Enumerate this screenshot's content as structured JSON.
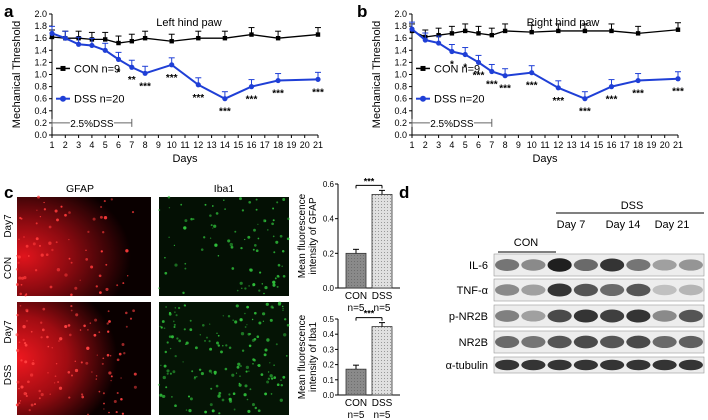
{
  "panel_labels": {
    "a": "a",
    "b": "b",
    "c": "c",
    "d": "d"
  },
  "chart_data": [
    {
      "type": "line",
      "panel": "a",
      "title": "Left hind paw",
      "xlabel": "Days",
      "ylabel": "Mechanical Threshold",
      "xlim": [
        1,
        21
      ],
      "ylim": [
        0.0,
        2.0
      ],
      "y_ticks": [
        "0.0",
        "0.2",
        "0.4",
        "0.6",
        "0.8",
        "1.0",
        "1.2",
        "1.4",
        "1.6",
        "1.8",
        "2.0"
      ],
      "x_ticks": [
        "1",
        "2",
        "3",
        "4",
        "5",
        "6",
        "7",
        "8",
        "9",
        "10",
        "11",
        "12",
        "13",
        "14",
        "15",
        "16",
        "17",
        "18",
        "19",
        "20",
        "21"
      ],
      "series": [
        {
          "name": "CON  n=9",
          "color": "#000000",
          "marker": "square",
          "x": [
            1,
            2,
            3,
            4,
            5,
            6,
            7,
            8,
            10,
            12,
            14,
            16,
            18,
            21
          ],
          "y": [
            1.62,
            1.6,
            1.6,
            1.58,
            1.58,
            1.52,
            1.55,
            1.6,
            1.55,
            1.6,
            1.6,
            1.66,
            1.6,
            1.66
          ]
        },
        {
          "name": "DSS  n=20",
          "color": "#1f3fd6",
          "marker": "circle",
          "x": [
            1,
            2,
            3,
            4,
            5,
            6,
            7,
            8,
            10,
            12,
            14,
            16,
            18,
            21
          ],
          "y": [
            1.68,
            1.6,
            1.5,
            1.48,
            1.4,
            1.25,
            1.12,
            1.02,
            1.16,
            0.83,
            0.6,
            0.8,
            0.9,
            0.92
          ]
        }
      ],
      "annotations": [
        {
          "x": 6,
          "label": "*"
        },
        {
          "x": 7,
          "label": "**"
        },
        {
          "x": 8,
          "label": "***"
        },
        {
          "x": 10,
          "label": "***"
        },
        {
          "x": 12,
          "label": "***"
        },
        {
          "x": 14,
          "label": "***"
        },
        {
          "x": 16,
          "label": "***"
        },
        {
          "x": 18,
          "label": "***"
        },
        {
          "x": 21,
          "label": "***"
        }
      ],
      "treatment_bar": "2.5%DSS"
    },
    {
      "type": "line",
      "panel": "b",
      "title": "Right hind paw",
      "xlabel": "Days",
      "ylabel": "Mechanical Threshold",
      "xlim": [
        1,
        21
      ],
      "ylim": [
        0.0,
        2.0
      ],
      "y_ticks": [
        "0.0",
        "0.2",
        "0.4",
        "0.6",
        "0.8",
        "1.0",
        "1.2",
        "1.4",
        "1.6",
        "1.8",
        "2.0"
      ],
      "x_ticks": [
        "1",
        "2",
        "3",
        "4",
        "5",
        "6",
        "7",
        "8",
        "9",
        "10",
        "11",
        "12",
        "13",
        "14",
        "15",
        "16",
        "17",
        "18",
        "19",
        "20",
        "21"
      ],
      "series": [
        {
          "name": "CON  n=9",
          "color": "#000000",
          "marker": "square",
          "x": [
            1,
            2,
            3,
            4,
            5,
            6,
            7,
            8,
            10,
            12,
            14,
            16,
            18,
            21
          ],
          "y": [
            1.72,
            1.62,
            1.65,
            1.68,
            1.72,
            1.68,
            1.65,
            1.72,
            1.7,
            1.72,
            1.72,
            1.72,
            1.68,
            1.74
          ]
        },
        {
          "name": "DSS  n=20",
          "color": "#1f3fd6",
          "marker": "circle",
          "x": [
            1,
            2,
            3,
            4,
            5,
            6,
            7,
            8,
            10,
            12,
            14,
            16,
            18,
            21
          ],
          "y": [
            1.75,
            1.57,
            1.52,
            1.38,
            1.33,
            1.2,
            1.05,
            0.98,
            1.03,
            0.78,
            0.6,
            0.8,
            0.9,
            0.93
          ]
        }
      ],
      "annotations": [
        {
          "x": 4,
          "label": "*"
        },
        {
          "x": 5,
          "label": "*"
        },
        {
          "x": 6,
          "label": "***"
        },
        {
          "x": 7,
          "label": "***"
        },
        {
          "x": 8,
          "label": "***"
        },
        {
          "x": 10,
          "label": "***"
        },
        {
          "x": 12,
          "label": "***"
        },
        {
          "x": 14,
          "label": "***"
        },
        {
          "x": 16,
          "label": "***"
        },
        {
          "x": 18,
          "label": "***"
        },
        {
          "x": 21,
          "label": "***"
        }
      ],
      "treatment_bar": "2.5%DSS"
    },
    {
      "type": "bar",
      "panel": "c-top",
      "categories": [
        "CON",
        "DSS"
      ],
      "values": [
        0.2,
        0.54
      ],
      "ylim": [
        0.0,
        0.6
      ],
      "y_ticks": [
        "0.0",
        "0.2",
        "0.4",
        "0.6"
      ],
      "ylabel_lines": [
        "Mean fluorescence",
        "intensity of GFAP"
      ],
      "n_labels": [
        "n=5",
        "n=5"
      ],
      "significance": "***"
    },
    {
      "type": "bar",
      "panel": "c-bottom",
      "categories": [
        "CON",
        "DSS"
      ],
      "values": [
        0.17,
        0.45
      ],
      "ylim": [
        0.0,
        0.5
      ],
      "y_ticks": [
        "0.0",
        "0.1",
        "0.2",
        "0.3",
        "0.4",
        "0.5"
      ],
      "ylabel_lines": [
        "Mean fluorescence",
        "intensity of Iba1"
      ],
      "n_labels": [
        "n=5",
        "n=5"
      ],
      "significance": "***"
    }
  ],
  "micrographs": {
    "col_titles": [
      "GFAP",
      "Iba1"
    ],
    "row_labels": [
      {
        "day": "Day7",
        "group": "CON"
      },
      {
        "day": "Day7",
        "group": "DSS"
      }
    ],
    "colors": {
      "gfap": "#d0121a",
      "iba1": "#2fbf3a",
      "background": "#050505"
    }
  },
  "western_blot": {
    "group_header": "DSS",
    "columns": [
      "CON",
      "Day 7",
      "Day 14",
      "Day 21"
    ],
    "rows": [
      "IL-6",
      "TNF-α",
      "p-NR2B",
      "NR2B",
      "α-tubulin"
    ]
  },
  "colors": {
    "con": "#000000",
    "dss": "#1f3fd6",
    "bar_con": "#8a8a8a",
    "bar_dss": "#cfcfcf"
  }
}
